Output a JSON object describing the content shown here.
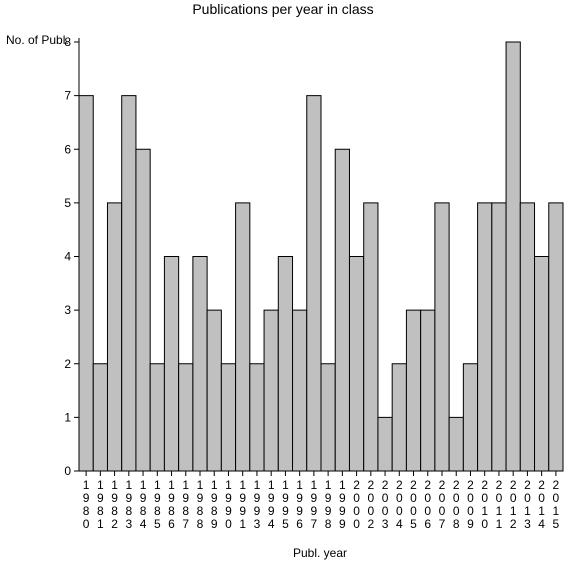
{
  "chart_data": {
    "type": "bar",
    "title": "Publications per year in class",
    "ylabel": "No. of Publ.",
    "xlabel": "Publ. year",
    "ylim": [
      0,
      8
    ],
    "yticks": [
      0,
      1,
      2,
      3,
      4,
      5,
      6,
      7,
      8
    ],
    "grid": false,
    "legend": "none",
    "bar_color": "#c0c0c0",
    "bar_edge_color": "#000000",
    "categories": [
      "1980",
      "1981",
      "1982",
      "1983",
      "1984",
      "1985",
      "1986",
      "1987",
      "1988",
      "1989",
      "1990",
      "1991",
      "1993",
      "1994",
      "1995",
      "1996",
      "1997",
      "1998",
      "1999",
      "2000",
      "2002",
      "2003",
      "2004",
      "2005",
      "2006",
      "2007",
      "2008",
      "2009",
      "2010",
      "2011",
      "2012",
      "2013",
      "2014",
      "2015"
    ],
    "values": [
      7,
      2,
      5,
      7,
      6,
      2,
      4,
      2,
      4,
      3,
      2,
      5,
      2,
      3,
      4,
      3,
      7,
      2,
      6,
      4,
      5,
      1,
      2,
      3,
      3,
      5,
      1,
      2,
      5,
      5,
      8,
      5,
      4,
      5
    ]
  }
}
